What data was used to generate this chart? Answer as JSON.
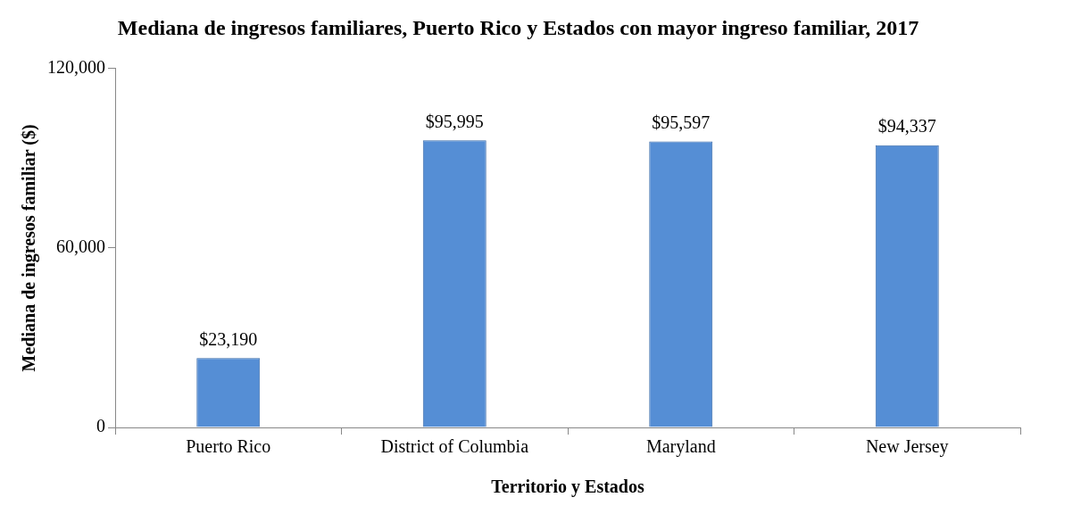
{
  "chart_data": {
    "type": "bar",
    "title": "Mediana de ingresos familiares, Puerto Rico y Estados con mayor ingreso familiar, 2017",
    "xlabel": "Territorio y Estados",
    "ylabel": "Mediana de ingresos familiar ($)",
    "categories": [
      "Puerto Rico",
      "District of Columbia",
      "Maryland",
      "New Jersey"
    ],
    "values": [
      23190,
      95995,
      95597,
      94337
    ],
    "value_labels": [
      "$23,190",
      "$95,995",
      "$95,597",
      "$94,337"
    ],
    "color": "#558ed5",
    "ylim": [
      0,
      120000
    ],
    "yticks": [
      {
        "value": 0,
        "label": "0"
      },
      {
        "value": 60000,
        "label": "60,000"
      },
      {
        "value": 120000,
        "label": "120,000"
      }
    ],
    "grid": false,
    "legend": false
  }
}
